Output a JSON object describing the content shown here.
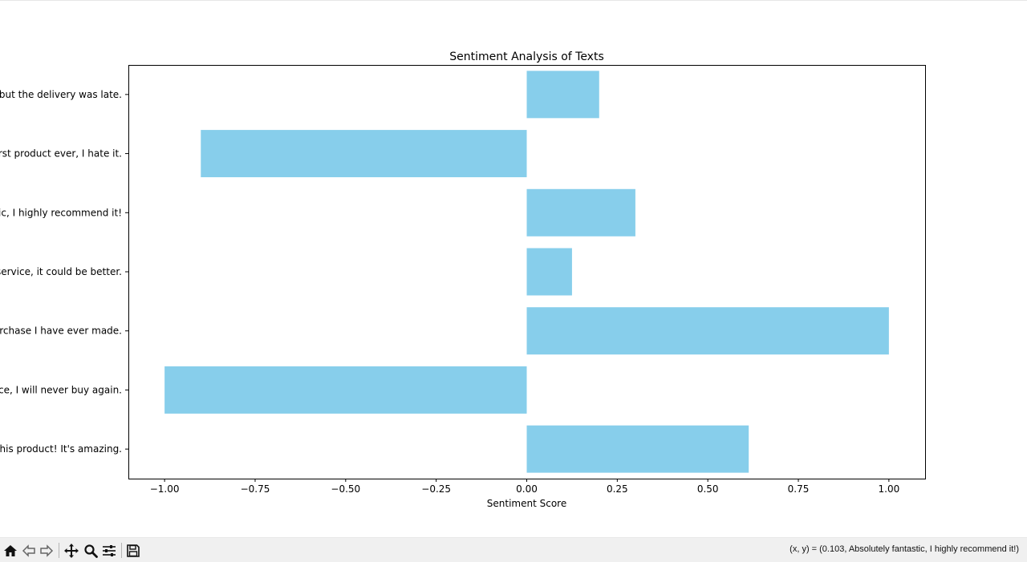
{
  "chart_data": {
    "type": "bar",
    "orientation": "horizontal",
    "title": "Sentiment Analysis of Texts",
    "xlabel": "Sentiment Score",
    "ylabel": "",
    "xlim": [
      -1.1,
      1.1
    ],
    "xticks": [
      -1.0,
      -0.75,
      -0.5,
      -0.25,
      0.0,
      0.25,
      0.5,
      0.75,
      1.0
    ],
    "xtick_labels": [
      "−1.00",
      "−0.75",
      "−0.50",
      "−0.25",
      "0.00",
      "0.25",
      "0.50",
      "0.75",
      "1.00"
    ],
    "categories": [
      "this product! It's amazing.",
      "nce, I will never buy again.",
      "urchase I have ever made.",
      "service, it could be better.",
      "tic, I highly recommend it!",
      "orst product ever, I hate it.",
      " but the delivery was late."
    ],
    "values": [
      0.613,
      -1.0,
      1.0,
      0.125,
      0.3,
      -0.9,
      0.2
    ],
    "bar_color": "#87ceeb",
    "grid": false,
    "legend": "none"
  },
  "toolbar": {
    "buttons": [
      "home-icon",
      "back-icon",
      "forward-icon",
      "pan-icon",
      "zoom-icon",
      "configure-icon",
      "save-icon"
    ],
    "coord_readout": "(x, y) = (0.103, Absolutely fantastic, I highly recommend it!)"
  }
}
